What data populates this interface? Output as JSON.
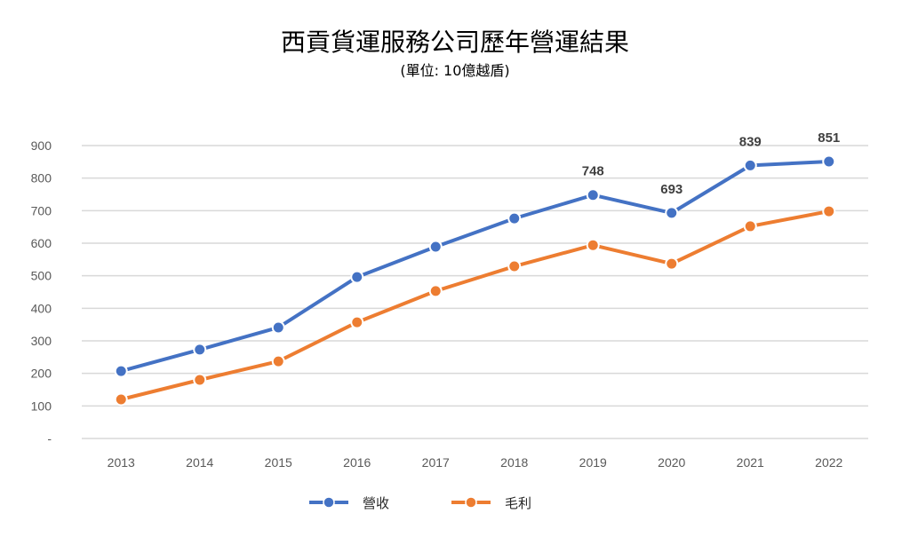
{
  "chart_data": {
    "type": "line",
    "title": "西貢貨運服務公司歷年營運結果",
    "subtitle": "(單位: 10億越盾)",
    "categories": [
      "2013",
      "2014",
      "2015",
      "2016",
      "2017",
      "2018",
      "2019",
      "2020",
      "2021",
      "2022"
    ],
    "series": [
      {
        "name": "營收",
        "color": "#4472C4",
        "values": [
          207,
          273,
          341,
          496,
          589,
          676,
          748,
          693,
          839,
          851
        ],
        "data_labels": [
          null,
          null,
          null,
          null,
          null,
          null,
          "748",
          "693",
          "839",
          "851"
        ]
      },
      {
        "name": "毛利",
        "color": "#ED7D31",
        "values": [
          120,
          180,
          237,
          357,
          453,
          529,
          594,
          537,
          652,
          698
        ]
      }
    ],
    "ylim": [
      0,
      900
    ],
    "yticks": [
      "-",
      "100",
      "200",
      "300",
      "400",
      "500",
      "600",
      "700",
      "800",
      "900"
    ],
    "grid": true,
    "legend": "bottom",
    "xlabel": "",
    "ylabel": ""
  }
}
